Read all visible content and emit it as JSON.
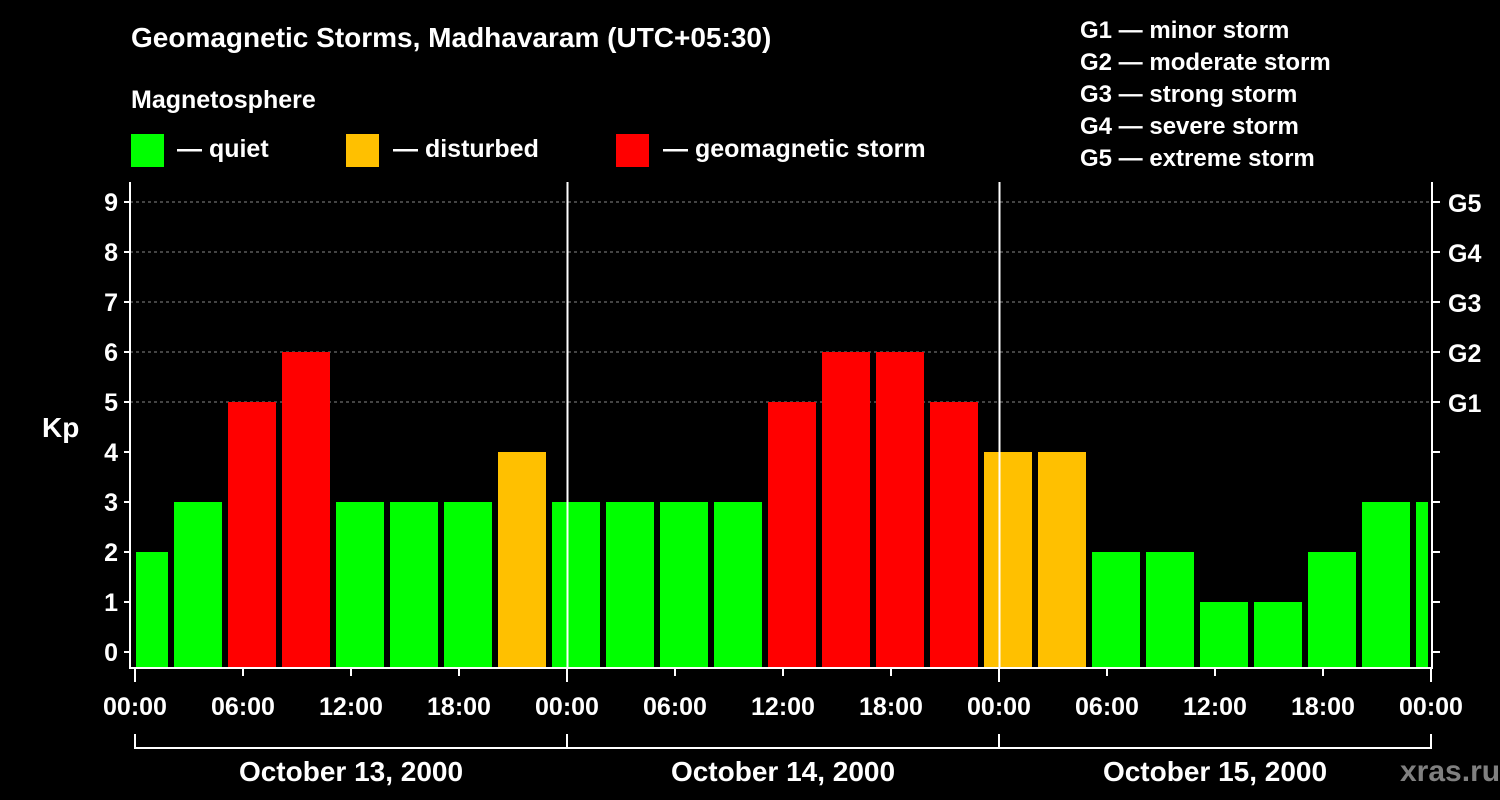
{
  "chart_data": {
    "type": "bar",
    "title": "Geomagnetic Storms, Madhavaram (UTC+05:30)",
    "subtitle": "Magnetosphere",
    "legend": [
      {
        "label": "— quiet",
        "color": "#00ff00"
      },
      {
        "label": "— disturbed",
        "color": "#ffc000"
      },
      {
        "label": "— geomagnetic storm",
        "color": "#ff0000"
      }
    ],
    "scale_legend": [
      "G1 — minor storm",
      "G2 — moderate storm",
      "G3 — strong storm",
      "G4 — severe storm",
      "G5 — extreme storm"
    ],
    "ylabel": "Kp",
    "ylim": [
      0,
      9
    ],
    "yticks": [
      "0",
      "1",
      "2",
      "3",
      "4",
      "5",
      "6",
      "7",
      "8",
      "9"
    ],
    "right_ticks": [
      {
        "kp": 5,
        "label": "G1"
      },
      {
        "kp": 6,
        "label": "G2"
      },
      {
        "kp": 7,
        "label": "G3"
      },
      {
        "kp": 8,
        "label": "G4"
      },
      {
        "kp": 9,
        "label": "G5"
      }
    ],
    "xticks": [
      "00:00",
      "06:00",
      "12:00",
      "18:00",
      "00:00",
      "06:00",
      "12:00",
      "18:00",
      "00:00",
      "06:00",
      "12:00",
      "18:00",
      "00:00"
    ],
    "days": [
      "October 13, 2000",
      "October 14, 2000",
      "October 15, 2000"
    ],
    "bar_start_hour": -1,
    "bar_hours": 3,
    "values": [
      2,
      3,
      5,
      6,
      3,
      3,
      3,
      4,
      3,
      3,
      3,
      3,
      5,
      6,
      6,
      5,
      4,
      4,
      2,
      2,
      1,
      1,
      2,
      3,
      3
    ],
    "colors": {
      "quiet": "#00ff00",
      "disturbed": "#ffc000",
      "storm": "#ff0000"
    }
  },
  "watermark": "xras.ru"
}
